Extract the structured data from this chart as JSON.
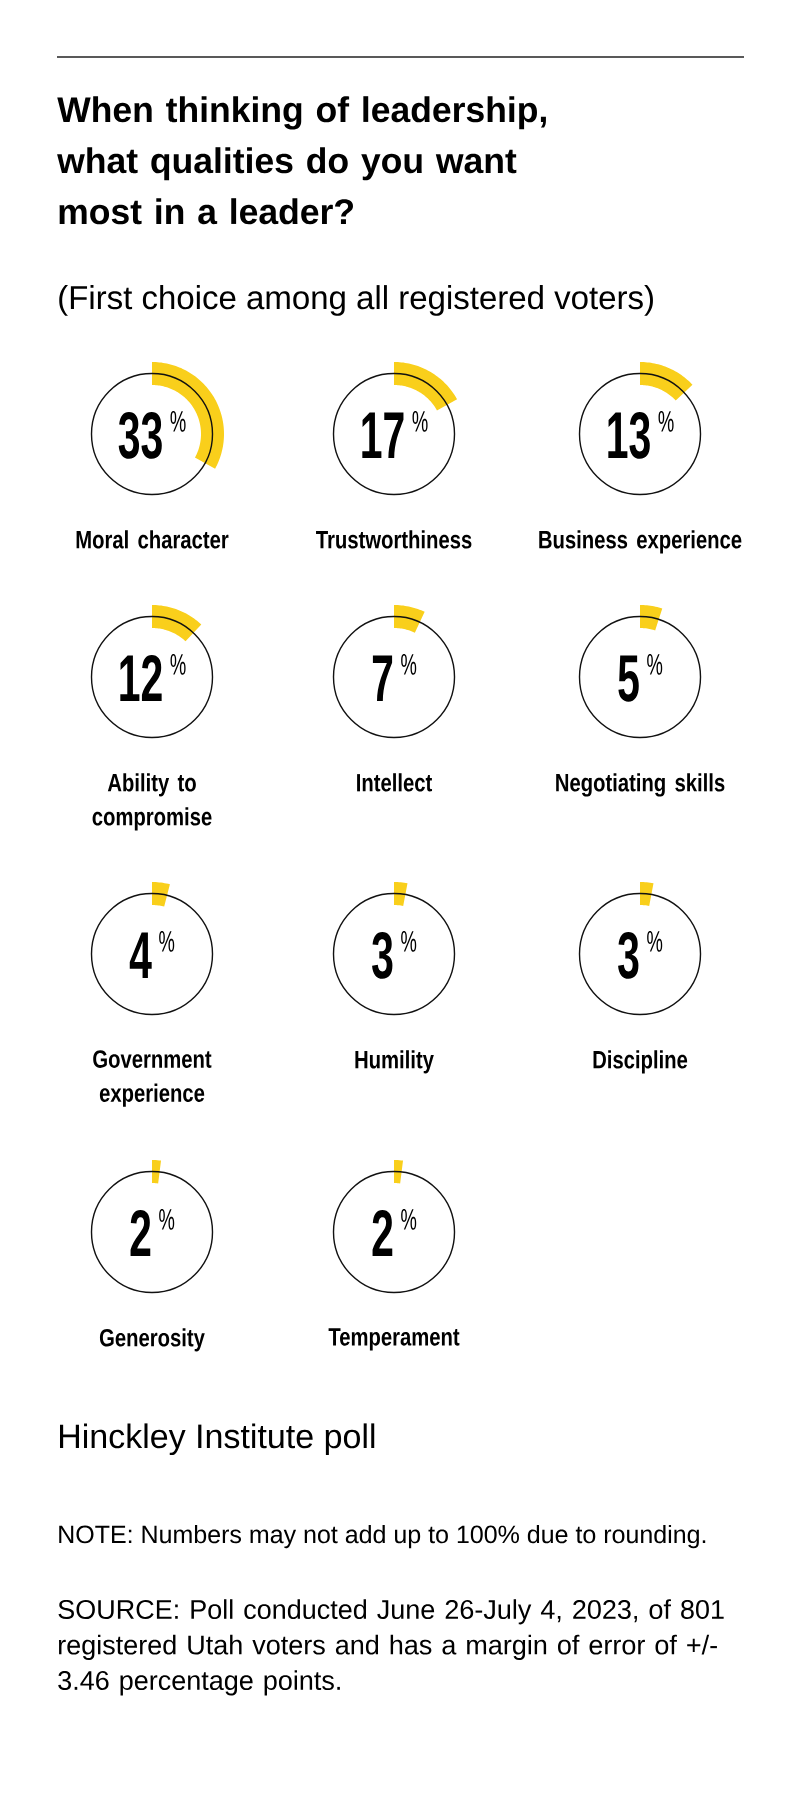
{
  "chart_data": [
    {
      "type": "other",
      "title": "When thinking of leadership, what qualities do you want most in a leader?",
      "subtitle": "(First choice among all registered voters)",
      "categories": [
        "Moral character"
      ],
      "values": [
        33
      ],
      "colors": [
        "#f9cf1b"
      ],
      "value_labels": [
        "33$^{%}$"
      ]
    },
    {
      "type": "other",
      "categories": [
        "Trustworthiness"
      ],
      "values": [
        17
      ],
      "colors": [
        "#f9cf1b"
      ],
      "value_labels": [
        "17$^{%}$"
      ]
    },
    {
      "type": "other",
      "categories": [
        "Business experience"
      ],
      "values": [
        13
      ],
      "colors": [
        "#f9cf1b"
      ],
      "value_labels": [
        "13$^{%}$"
      ]
    },
    {
      "type": "other",
      "categories": [
        "Ability to compromise"
      ],
      "values": [
        12
      ],
      "colors": [
        "#f9cf1b"
      ],
      "value_labels": [
        "12$^{%}$"
      ]
    },
    {
      "type": "other",
      "categories": [
        "Intellect"
      ],
      "values": [
        7
      ],
      "colors": [
        "#f9cf1b"
      ],
      "value_labels": [
        "7$^{%}$"
      ]
    },
    {
      "type": "other",
      "categories": [
        "Negotiating skills"
      ],
      "values": [
        5
      ],
      "colors": [
        "#f9cf1b"
      ],
      "value_labels": [
        "5$^{%}$"
      ]
    },
    {
      "type": "other",
      "categories": [
        "Government experience"
      ],
      "values": [
        4
      ],
      "colors": [
        "#f9cf1b"
      ],
      "value_labels": [
        "4$^{%}$"
      ]
    },
    {
      "type": "other",
      "categories": [
        "Humility"
      ],
      "values": [
        3
      ],
      "colors": [
        "#f9cf1b"
      ],
      "value_labels": [
        "3$^{%}$"
      ]
    },
    {
      "type": "other",
      "categories": [
        "Discipline"
      ],
      "values": [
        3
      ],
      "colors": [
        "#f9cf1b"
      ],
      "value_labels": [
        "3$^{%}$"
      ]
    },
    {
      "type": "other",
      "categories": [
        "Generosity"
      ],
      "values": [
        2
      ],
      "colors": [
        "#f9cf1b"
      ],
      "value_labels": [
        "2$^{%}$"
      ]
    },
    {
      "type": "other",
      "categories": [
        "Temperament"
      ],
      "values": [
        2
      ],
      "colors": [
        "#f9cf1b"
      ],
      "value_labels": [
        "2$^{%}$"
      ],
      "annotations": [
        "Hinckley Institute poll",
        "NOTE: Numbers may not add up to 100% due to rounding.",
        "SOURCE: Poll conducted June 26-July 4, 2023, of 801 registered Utah voters and has a margin of error of +/- 3.46 percentage points."
      ]
    }
  ]
}
